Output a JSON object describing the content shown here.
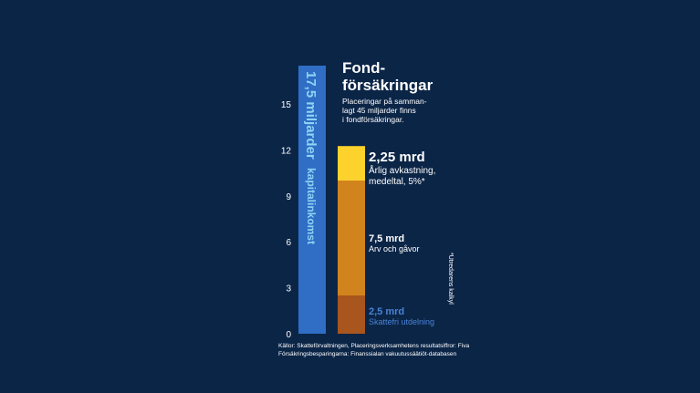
{
  "colors": {
    "background": "#0b2547",
    "tall_bar": "#2f6ec4",
    "tall_bar_text": "#8fd3f5",
    "segment_bottom": "#a8561e",
    "segment_middle": "#d1841e",
    "segment_top": "#fdd22c",
    "bottom_label": "#4a83d6",
    "axis_text": "#ffffff"
  },
  "chart_data": {
    "type": "bar",
    "ylim": [
      0,
      17.5
    ],
    "yticks": [
      0,
      3,
      6,
      9,
      12,
      15
    ],
    "title": "Fond-\nförsäkringar",
    "subtitle": [
      "Placeringar på samman-",
      "lagt 45 miljarder finns",
      "i fondförsäkringar."
    ],
    "tall_bar": {
      "value": 17.5,
      "label_line1": "17,5 miljarder",
      "label_line2": "kapitalinkomst"
    },
    "stacked_bar": {
      "segments": [
        {
          "name": "Skattefri utdelning",
          "value_label": "2,5 mrd",
          "value": 2.5
        },
        {
          "name": "Arv och gåvor",
          "value_label": "7,5 mrd",
          "value": 7.5
        },
        {
          "name": "Årlig avkastning, medeltal, 5%*",
          "value_label": "2,25 mrd",
          "value": 2.25
        }
      ]
    },
    "annotations": {
      "top_label_line1": "2,25 mrd",
      "top_label_line2": "Årlig avkastning,",
      "top_label_line3": "medeltal, 5%*",
      "middle_label_line1": "7,5 mrd",
      "middle_label_line2": "Arv och gåvor",
      "bottom_label_line1": "2,5 mrd",
      "bottom_label_line2": "Skattefri utdelning",
      "footnote_vertical": "*Utredarens kalkyl"
    },
    "source": [
      "Källor: Skatteförvaltningen, Placeringsverksamhetens resultatsiffror: Fiva",
      "Försäkringsbesparingarna: Finanssialan vakuutussäätiöt-databasen"
    ]
  }
}
